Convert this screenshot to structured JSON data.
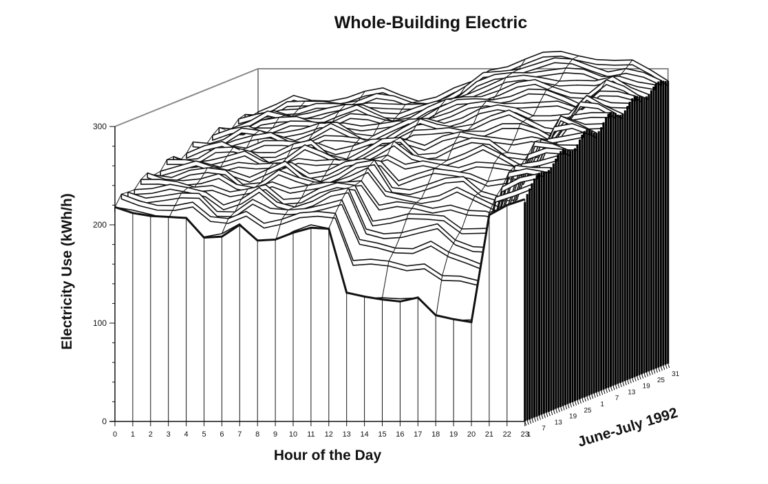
{
  "chart_data": {
    "type": "3d-surface",
    "title": "Whole-Building Electric",
    "xlabel": "Hour of the Day",
    "ylabel": "Electricity Use (kWh/h)",
    "zlabel": "June-July 1992",
    "x_ticks": [
      "0",
      "1",
      "2",
      "3",
      "4",
      "5",
      "6",
      "7",
      "8",
      "9",
      "10",
      "11",
      "12",
      "13",
      "14",
      "15",
      "16",
      "17",
      "18",
      "19",
      "20",
      "21",
      "22",
      "23"
    ],
    "y_ticks": [
      "0",
      "100",
      "200",
      "300"
    ],
    "ylim": [
      0,
      300
    ],
    "date_ticks": [
      "1",
      "7",
      "13",
      "19",
      "25",
      "1",
      "7",
      "13",
      "19",
      "25",
      "31"
    ],
    "front_day_profile": {
      "x": [
        0,
        1,
        2,
        3,
        4,
        5,
        6,
        7,
        8,
        9,
        10,
        11,
        12,
        13,
        14,
        15,
        16,
        17,
        18,
        19,
        20,
        21,
        22,
        23
      ],
      "y": [
        218,
        212,
        209,
        208,
        207,
        187,
        188,
        200,
        184,
        185,
        192,
        197,
        196,
        131,
        127,
        124,
        122,
        126,
        108,
        104,
        101,
        210,
        220,
        226
      ]
    },
    "back_day_profile": {
      "x": [
        0,
        1,
        2,
        3,
        4,
        5,
        6,
        7,
        8,
        9,
        10,
        11,
        12,
        13,
        14,
        15,
        16,
        17,
        18,
        19,
        20,
        21,
        22,
        23
      ],
      "y": [
        258,
        262,
        270,
        268,
        270,
        272,
        275,
        278,
        274,
        270,
        272,
        278,
        285,
        300,
        305,
        310,
        314,
        316,
        315,
        312,
        308,
        306,
        298,
        290
      ]
    },
    "grid": false,
    "legend": "none"
  }
}
